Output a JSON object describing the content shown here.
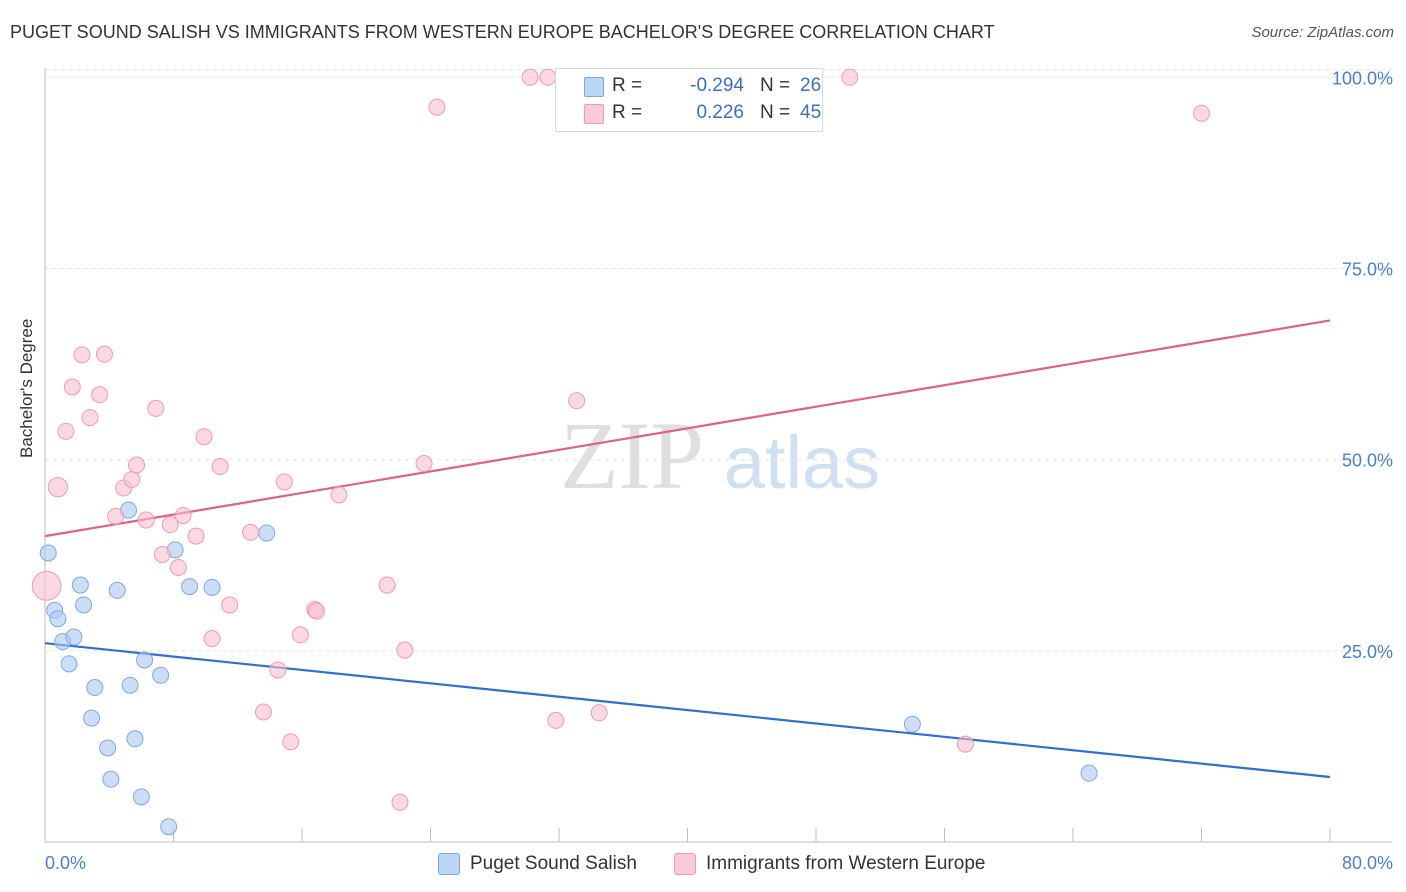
{
  "title": "PUGET SOUND SALISH VS IMMIGRANTS FROM WESTERN EUROPE BACHELOR'S DEGREE CORRELATION CHART",
  "source": "Source: ZipAtlas.com",
  "watermark": {
    "zip": "ZIP",
    "atlas": "atlas"
  },
  "legend": {
    "r_label": "R =",
    "n_label": "N =",
    "series": [
      {
        "r": "-0.294",
        "n": "26"
      },
      {
        "r": "0.226",
        "n": "45"
      }
    ]
  },
  "chart_data": {
    "type": "scatter",
    "xlabel": "",
    "ylabel": "Bachelor's Degree",
    "xlim": [
      0,
      80
    ],
    "ylim": [
      0,
      102
    ],
    "x_tick_labels": [
      "0.0%",
      "80.0%"
    ],
    "y_ticks": [
      25,
      50,
      75,
      100
    ],
    "y_tick_labels": [
      "25.0%",
      "50.0%",
      "75.0%",
      "100.0%"
    ],
    "grid": true,
    "series": [
      {
        "name": "Puget Sound Salish",
        "color": "#a8c8f0",
        "stroke": "#7ea9df",
        "trend_color": "#2f6fce",
        "trend": {
          "x": [
            0,
            80
          ],
          "y": [
            26.0,
            8.5
          ]
        },
        "points": [
          {
            "x": 0.2,
            "y": 37.8,
            "s": 10
          },
          {
            "x": 0.6,
            "y": 30.3,
            "s": 10
          },
          {
            "x": 0.8,
            "y": 29.2,
            "s": 10
          },
          {
            "x": 1.1,
            "y": 26.2,
            "s": 10
          },
          {
            "x": 1.5,
            "y": 23.3,
            "s": 10
          },
          {
            "x": 1.8,
            "y": 26.8,
            "s": 10
          },
          {
            "x": 2.2,
            "y": 33.6,
            "s": 10
          },
          {
            "x": 2.4,
            "y": 31.0,
            "s": 10
          },
          {
            "x": 3.1,
            "y": 20.2,
            "s": 10
          },
          {
            "x": 2.9,
            "y": 16.2,
            "s": 10
          },
          {
            "x": 3.9,
            "y": 12.3,
            "s": 10
          },
          {
            "x": 4.1,
            "y": 8.2,
            "s": 10
          },
          {
            "x": 4.5,
            "y": 32.9,
            "s": 10
          },
          {
            "x": 5.2,
            "y": 43.4,
            "s": 10
          },
          {
            "x": 5.3,
            "y": 20.5,
            "s": 10
          },
          {
            "x": 5.6,
            "y": 13.5,
            "s": 10
          },
          {
            "x": 6.0,
            "y": 5.9,
            "s": 10
          },
          {
            "x": 6.2,
            "y": 23.8,
            "s": 10
          },
          {
            "x": 7.2,
            "y": 21.8,
            "s": 10
          },
          {
            "x": 8.1,
            "y": 38.2,
            "s": 10
          },
          {
            "x": 7.7,
            "y": 2.0,
            "s": 10
          },
          {
            "x": 9.0,
            "y": 33.4,
            "s": 10
          },
          {
            "x": 10.4,
            "y": 33.3,
            "s": 10
          },
          {
            "x": 13.8,
            "y": 40.4,
            "s": 10
          },
          {
            "x": 54.0,
            "y": 15.4,
            "s": 10
          },
          {
            "x": 65.0,
            "y": 9.0,
            "s": 10
          }
        ]
      },
      {
        "name": "Immigrants from Western Europe",
        "color": "#f7bfcf",
        "stroke": "#ee9ab3",
        "trend_color": "#e0608a",
        "trend": {
          "x": [
            0,
            80
          ],
          "y": [
            40.0,
            68.2
          ]
        },
        "points": [
          {
            "x": 0.1,
            "y": 33.5,
            "s": 18
          },
          {
            "x": 0.8,
            "y": 46.4,
            "s": 12
          },
          {
            "x": 1.3,
            "y": 53.7,
            "s": 10
          },
          {
            "x": 1.7,
            "y": 59.5,
            "s": 10
          },
          {
            "x": 2.3,
            "y": 63.7,
            "s": 10
          },
          {
            "x": 2.8,
            "y": 55.5,
            "s": 10
          },
          {
            "x": 3.4,
            "y": 58.5,
            "s": 10
          },
          {
            "x": 3.7,
            "y": 63.8,
            "s": 10
          },
          {
            "x": 4.4,
            "y": 42.6,
            "s": 10
          },
          {
            "x": 4.9,
            "y": 46.3,
            "s": 10
          },
          {
            "x": 5.4,
            "y": 47.4,
            "s": 10
          },
          {
            "x": 5.7,
            "y": 49.3,
            "s": 10
          },
          {
            "x": 6.3,
            "y": 42.1,
            "s": 10
          },
          {
            "x": 6.9,
            "y": 56.7,
            "s": 10
          },
          {
            "x": 7.3,
            "y": 37.6,
            "s": 10
          },
          {
            "x": 7.8,
            "y": 41.5,
            "s": 10
          },
          {
            "x": 8.3,
            "y": 35.9,
            "s": 10
          },
          {
            "x": 8.6,
            "y": 42.7,
            "s": 10
          },
          {
            "x": 9.4,
            "y": 40.0,
            "s": 10
          },
          {
            "x": 9.9,
            "y": 53.0,
            "s": 10
          },
          {
            "x": 10.4,
            "y": 26.6,
            "s": 10
          },
          {
            "x": 10.9,
            "y": 49.1,
            "s": 10
          },
          {
            "x": 11.5,
            "y": 31.0,
            "s": 10
          },
          {
            "x": 12.8,
            "y": 40.5,
            "s": 10
          },
          {
            "x": 13.6,
            "y": 17.0,
            "s": 10
          },
          {
            "x": 14.5,
            "y": 22.5,
            "s": 10
          },
          {
            "x": 14.9,
            "y": 47.1,
            "s": 10
          },
          {
            "x": 15.3,
            "y": 13.1,
            "s": 10
          },
          {
            "x": 15.9,
            "y": 27.1,
            "s": 10
          },
          {
            "x": 16.8,
            "y": 30.4,
            "s": 10
          },
          {
            "x": 16.9,
            "y": 30.2,
            "s": 10
          },
          {
            "x": 18.3,
            "y": 45.4,
            "s": 10
          },
          {
            "x": 21.3,
            "y": 33.6,
            "s": 10
          },
          {
            "x": 22.1,
            "y": 5.2,
            "s": 10
          },
          {
            "x": 22.4,
            "y": 25.1,
            "s": 10
          },
          {
            "x": 23.6,
            "y": 49.5,
            "s": 10
          },
          {
            "x": 24.4,
            "y": 96.1,
            "s": 10
          },
          {
            "x": 30.2,
            "y": 100.0,
            "s": 10
          },
          {
            "x": 31.3,
            "y": 100.0,
            "s": 10
          },
          {
            "x": 31.8,
            "y": 15.9,
            "s": 10
          },
          {
            "x": 33.1,
            "y": 57.7,
            "s": 10
          },
          {
            "x": 34.5,
            "y": 16.9,
            "s": 10
          },
          {
            "x": 50.1,
            "y": 100.0,
            "s": 10
          },
          {
            "x": 57.3,
            "y": 12.8,
            "s": 10
          },
          {
            "x": 72.0,
            "y": 95.3,
            "s": 10
          }
        ]
      }
    ]
  }
}
